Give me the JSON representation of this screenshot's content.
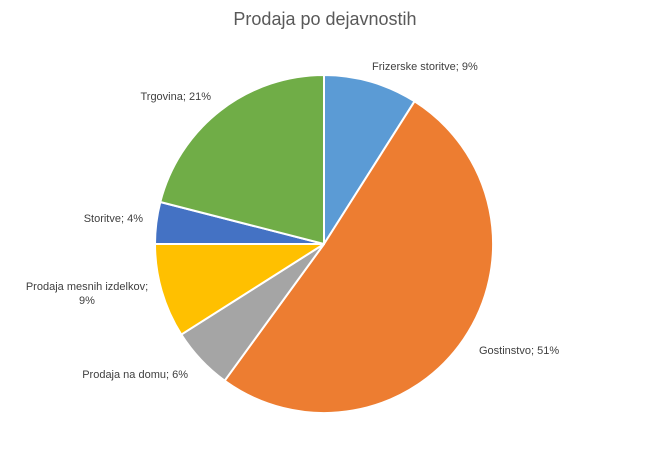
{
  "chart_data": {
    "type": "pie",
    "title": "Prodaja po dejavnostih",
    "slices": [
      {
        "name": "Frizerske storitve",
        "value": 9,
        "label": "Frizerske storitve; 9%",
        "color": "#5B9BD5"
      },
      {
        "name": "Gostinstvo",
        "value": 51,
        "label": "Gostinstvo; 51%",
        "color": "#ED7D31"
      },
      {
        "name": "Prodaja na domu",
        "value": 6,
        "label": "Prodaja na domu; 6%",
        "color": "#A5A5A5"
      },
      {
        "name": "Prodaja mesnih izdelkov",
        "value": 9,
        "label": "Prodaja mesnih izdelkov; 9%",
        "label_lines": [
          "Prodaja mesnih izdelkov;",
          "9%"
        ],
        "color": "#FFC000"
      },
      {
        "name": "Storitve",
        "value": 4,
        "label": "Storitve; 4%",
        "color": "#4472C4"
      },
      {
        "name": "Trgovina",
        "value": 21,
        "label": "Trgovina; 21%",
        "color": "#70AD47"
      }
    ],
    "legend": "none",
    "data_labels": "outside"
  }
}
